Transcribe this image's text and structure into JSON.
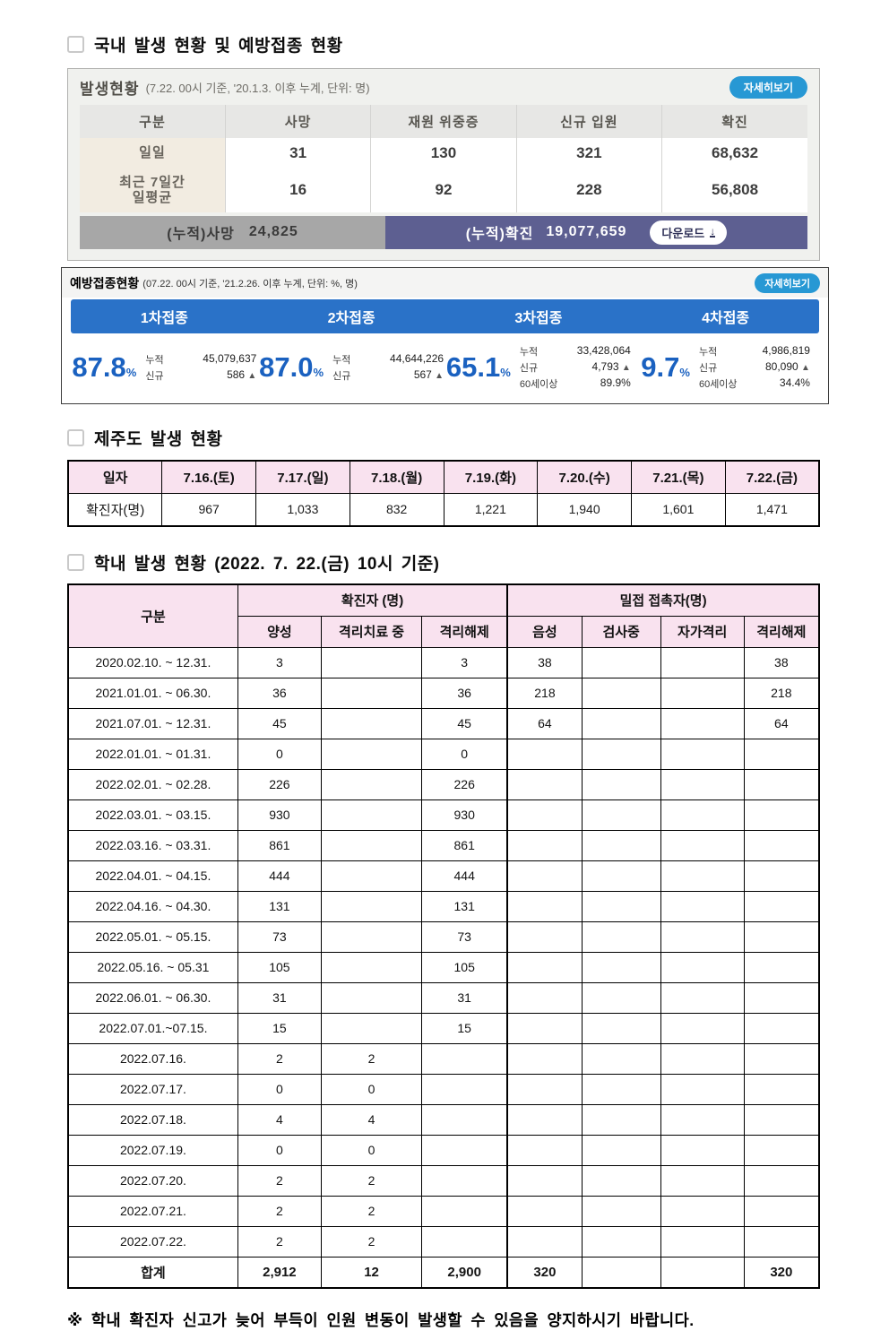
{
  "sections": {
    "domestic_title": "국내 발생 현황 및 예방접종 현황",
    "jeju_title": "제주도 발생 현황",
    "school_title": "학내 발생 현황 (2022. 7. 22.(금) 10시 기준)",
    "footnote": "※ 학내 확진자 신고가 늦어 부득이 인원 변동이 발생할 수 있음을 양지하시기 바랍니다."
  },
  "occurrence": {
    "title": "발생현황",
    "subtitle": "(7.22. 00시 기준, '20.1.3. 이후 누계, 단위: 명)",
    "detail_button": "자세히보기",
    "columns": [
      "구분",
      "사망",
      "재원 위중증",
      "신규 입원",
      "확진"
    ],
    "rows": [
      {
        "label": "일일",
        "values": [
          "31",
          "130",
          "321",
          "68,632"
        ]
      },
      {
        "label": "최근 7일간\n일평균",
        "values": [
          "16",
          "92",
          "228",
          "56,808"
        ]
      }
    ],
    "cumulative": {
      "death_label": "(누적)사망",
      "death_value": "24,825",
      "confirmed_label": "(누적)확진",
      "confirmed_value": "19,077,659",
      "download_label": "다운로드",
      "download_icon": "↓"
    }
  },
  "vaccination": {
    "title": "예방접종현황",
    "subtitle": "(07.22. 00시 기준, '21.2.26. 이후 누계, 단위: %, 명)",
    "detail_button": "자세히보기",
    "field_labels": {
      "cumulative": "누적",
      "new": "신규",
      "over60": "60세이상"
    },
    "up_icon": "▲",
    "percent_sign": "%",
    "doses": [
      {
        "label": "1차접종",
        "percent": "87.8",
        "cumulative": "45,079,637",
        "new": "586"
      },
      {
        "label": "2차접종",
        "percent": "87.0",
        "cumulative": "44,644,226",
        "new": "567"
      },
      {
        "label": "3차접종",
        "percent": "65.1",
        "cumulative": "33,428,064",
        "new": "4,793",
        "over60": "89.9%"
      },
      {
        "label": "4차접종",
        "percent": "9.7",
        "cumulative": "4,986,819",
        "new": "80,090",
        "over60": "34.4%"
      }
    ]
  },
  "jeju": {
    "columns": [
      "일자",
      "7.16.(토)",
      "7.17.(일)",
      "7.18.(월)",
      "7.19.(화)",
      "7.20.(수)",
      "7.21.(목)",
      "7.22.(금)"
    ],
    "row_label": "확진자(명)",
    "values": [
      "967",
      "1,033",
      "832",
      "1,221",
      "1,940",
      "1,601",
      "1,471"
    ]
  },
  "school": {
    "corner_label": "구분",
    "group1_label": "확진자 (명)",
    "group2_label": "밀접 접촉자(명)",
    "sub_columns": [
      "양성",
      "격리치료 중",
      "격리해제",
      "음성",
      "검사중",
      "자가격리",
      "격리해제"
    ],
    "col_widths_pct": [
      22.6,
      11.1,
      13.4,
      11.4,
      9.9,
      10.5,
      11.1,
      10.0
    ],
    "rows": [
      {
        "label": "2020.02.10.  ~ 12.31.",
        "cells": [
          "3",
          "",
          "3",
          "38",
          "",
          "",
          "38"
        ]
      },
      {
        "label": "2021.01.01.  ~ 06.30.",
        "cells": [
          "36",
          "",
          "36",
          "218",
          "",
          "",
          "218"
        ]
      },
      {
        "label": "2021.07.01.  ~ 12.31.",
        "cells": [
          "45",
          "",
          "45",
          "64",
          "",
          "",
          "64"
        ]
      },
      {
        "label": "2022.01.01.  ~ 01.31.",
        "cells": [
          "0",
          "",
          "0",
          "",
          "",
          "",
          ""
        ]
      },
      {
        "label": "2022.02.01.  ~ 02.28.",
        "cells": [
          "226",
          "",
          "226",
          "",
          "",
          "",
          ""
        ]
      },
      {
        "label": "2022.03.01.  ~ 03.15.",
        "cells": [
          "930",
          "",
          "930",
          "",
          "",
          "",
          ""
        ]
      },
      {
        "label": "2022.03.16.  ~ 03.31.",
        "cells": [
          "861",
          "",
          "861",
          "",
          "",
          "",
          ""
        ]
      },
      {
        "label": "2022.04.01.  ~ 04.15.",
        "cells": [
          "444",
          "",
          "444",
          "",
          "",
          "",
          ""
        ]
      },
      {
        "label": "2022.04.16.  ~ 04.30.",
        "cells": [
          "131",
          "",
          "131",
          "",
          "",
          "",
          ""
        ]
      },
      {
        "label": "2022.05.01.  ~ 05.15.",
        "cells": [
          "73",
          "",
          "73",
          "",
          "",
          "",
          ""
        ]
      },
      {
        "label": "2022.05.16.  ~ 05.31",
        "cells": [
          "105",
          "",
          "105",
          "",
          "",
          "",
          ""
        ]
      },
      {
        "label": "2022.06.01.  ~ 06.30.",
        "cells": [
          "31",
          "",
          "31",
          "",
          "",
          "",
          ""
        ]
      },
      {
        "label": "2022.07.01.~07.15.",
        "cells": [
          "15",
          "",
          "15",
          "",
          "",
          "",
          ""
        ]
      },
      {
        "label": "2022.07.16.",
        "cells": [
          "2",
          "2",
          "",
          "",
          "",
          "",
          ""
        ]
      },
      {
        "label": "2022.07.17.",
        "cells": [
          "0",
          "0",
          "",
          "",
          "",
          "",
          ""
        ]
      },
      {
        "label": "2022.07.18.",
        "cells": [
          "4",
          "4",
          "",
          "",
          "",
          "",
          ""
        ]
      },
      {
        "label": "2022.07.19.",
        "cells": [
          "0",
          "0",
          "",
          "",
          "",
          "",
          ""
        ]
      },
      {
        "label": "2022.07.20.",
        "cells": [
          "2",
          "2",
          "",
          "",
          "",
          "",
          ""
        ]
      },
      {
        "label": "2022.07.21.",
        "cells": [
          "2",
          "2",
          "",
          "",
          "",
          "",
          ""
        ]
      },
      {
        "label": "2022.07.22.",
        "cells": [
          "2",
          "2",
          "",
          "",
          "",
          "",
          ""
        ]
      }
    ],
    "total_row": {
      "label": "합계",
      "cells": [
        "2,912",
        "12",
        "2,900",
        "320",
        "",
        "",
        "320"
      ]
    }
  },
  "colors": {
    "pill_blue": "#2798d4",
    "bar_blue": "#2a72c8",
    "percent_blue": "#1a61c0",
    "slate": "#5d5f91",
    "gray_bar": "#a7a7a7",
    "pink_header": "#f9e2ef",
    "beige": "#f2ece1"
  }
}
